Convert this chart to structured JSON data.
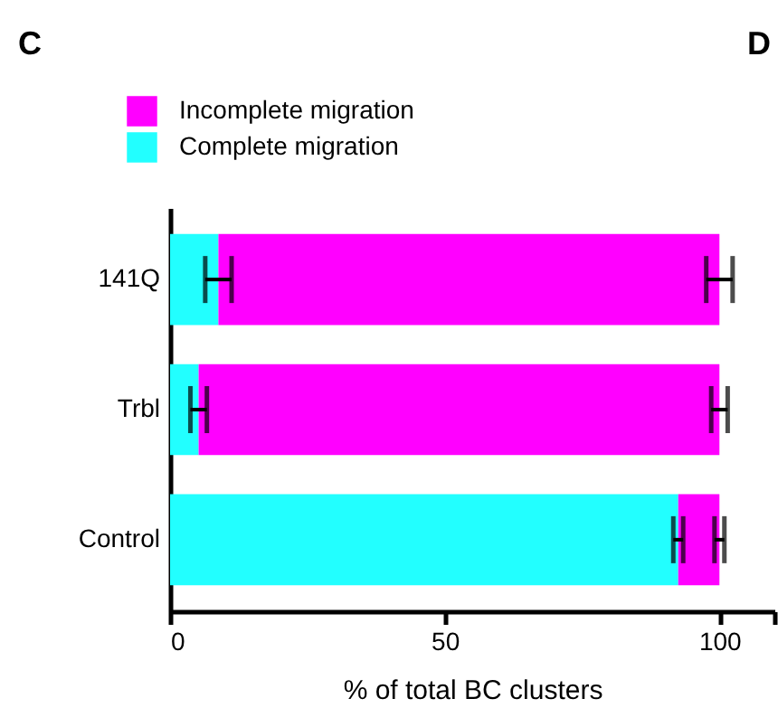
{
  "chart_data": {
    "type": "bar",
    "orientation": "horizontal",
    "stacked": true,
    "title": "C",
    "annotations": [
      "D"
    ],
    "categories": [
      "141Q",
      "Trbl",
      "Control"
    ],
    "series": [
      {
        "name": "Complete migration",
        "color": "#22ffff",
        "values": [
          8.8,
          5.2,
          92.5
        ],
        "errors": [
          2.4,
          1.5,
          0.9
        ]
      },
      {
        "name": "Incomplete migration",
        "color": "#ff00ff",
        "values": [
          91.2,
          94.8,
          7.5
        ],
        "errors": [
          2.4,
          1.5,
          0.9
        ]
      }
    ],
    "xlabel": "% of total BC clusters",
    "xlim": [
      0,
      110
    ],
    "xticks": [
      0,
      50,
      100,
      {
        "value": 110,
        "label": null
      }
    ],
    "grid": false,
    "legend": "top left"
  }
}
